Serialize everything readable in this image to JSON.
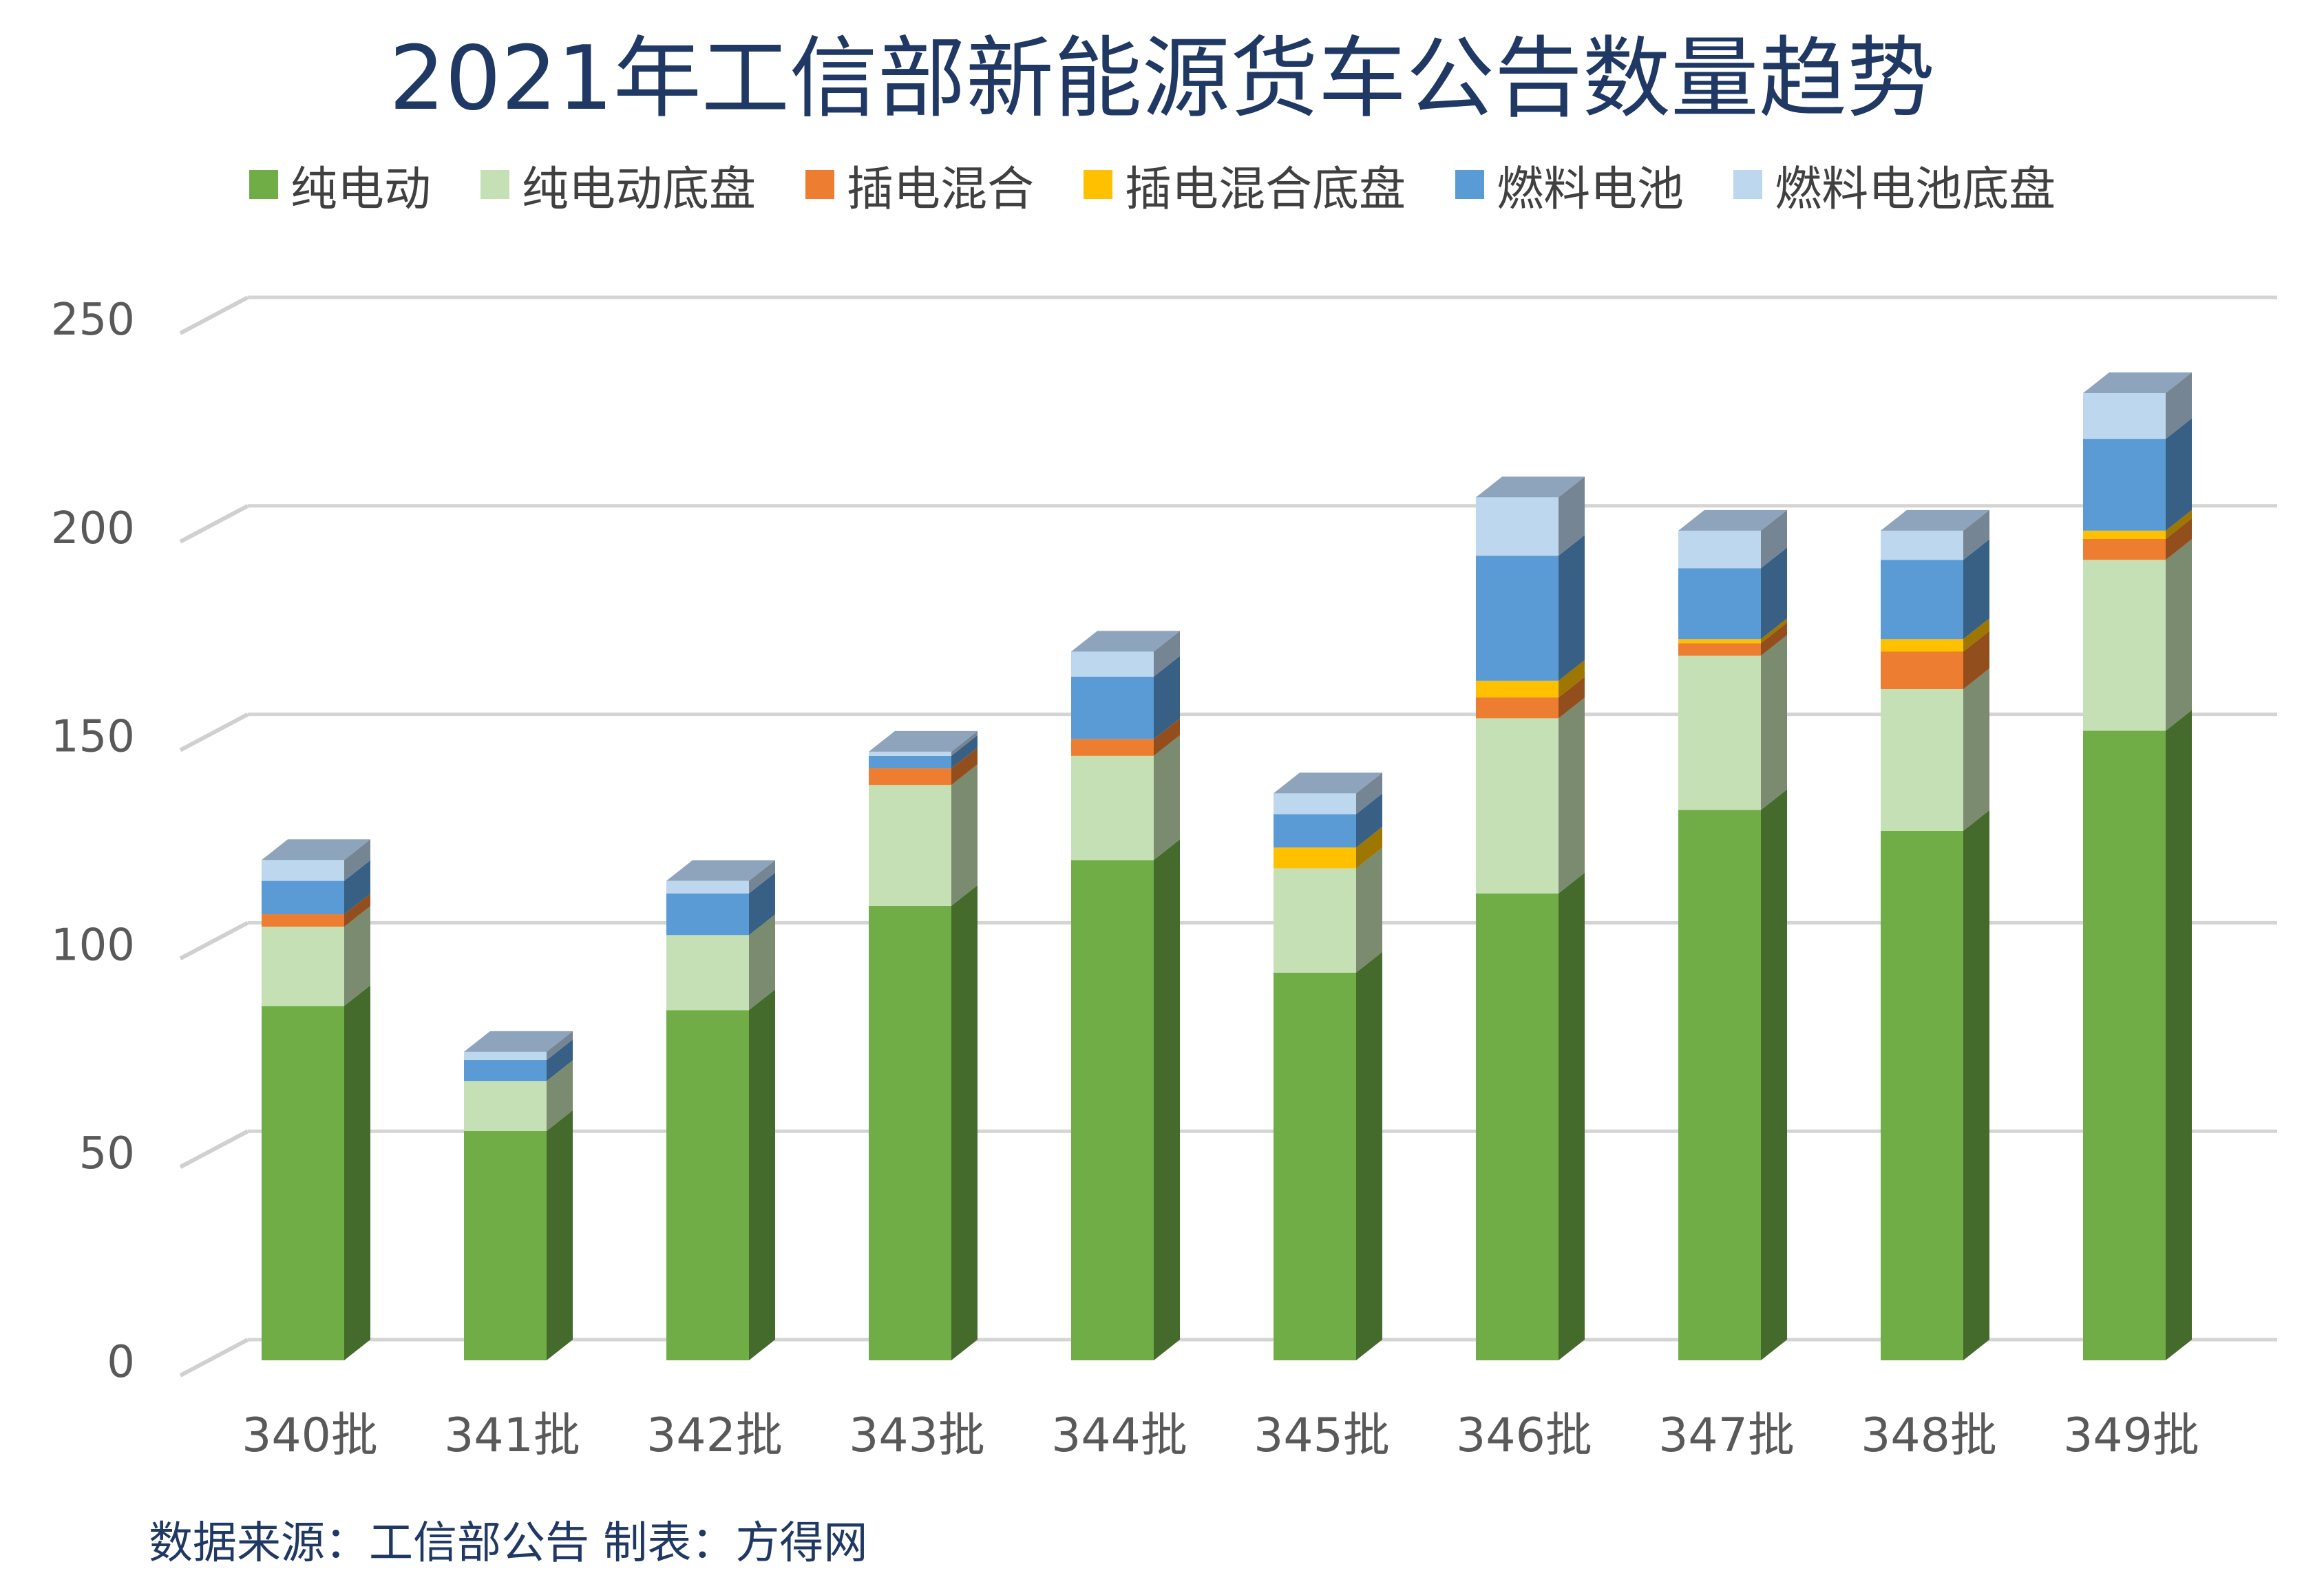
{
  "title": "2021年工信部新能源货车公告数量趋势",
  "source": "数据来源：工信部公告  制表：方得网",
  "chart_data": {
    "type": "bar",
    "stacked": true,
    "style": "3d-column",
    "title": "2021年工信部新能源货车公告数量趋势",
    "xlabel": "",
    "ylabel": "",
    "ylim": [
      0,
      250
    ],
    "yticks": [
      0,
      50,
      100,
      150,
      200,
      250
    ],
    "grid": true,
    "legend": "top",
    "categories": [
      "340批",
      "341批",
      "342批",
      "343批",
      "344批",
      "345批",
      "346批",
      "347批",
      "348批",
      "349批"
    ],
    "series": [
      {
        "name": "纯电动",
        "color": "#70ad47",
        "values": [
          85,
          55,
          84,
          109,
          120,
          93,
          112,
          132,
          127,
          151
        ]
      },
      {
        "name": "纯电动底盘",
        "color": "#c5e0b4",
        "values": [
          19,
          12,
          18,
          29,
          25,
          25,
          42,
          37,
          34,
          41
        ]
      },
      {
        "name": "插电混合",
        "color": "#ed7d31",
        "values": [
          3,
          0,
          0,
          4,
          4,
          0,
          5,
          3,
          9,
          5
        ]
      },
      {
        "name": "插电混合底盘",
        "color": "#ffc000",
        "values": [
          0,
          0,
          0,
          0,
          0,
          5,
          4,
          1,
          3,
          2
        ]
      },
      {
        "name": "燃料电池",
        "color": "#5b9bd5",
        "values": [
          8,
          5,
          10,
          3,
          15,
          8,
          30,
          17,
          19,
          22
        ]
      },
      {
        "name": "燃料电池底盘",
        "color": "#bdd7ee",
        "values": [
          5,
          2,
          3,
          1,
          6,
          5,
          14,
          9,
          7,
          11
        ]
      }
    ]
  }
}
